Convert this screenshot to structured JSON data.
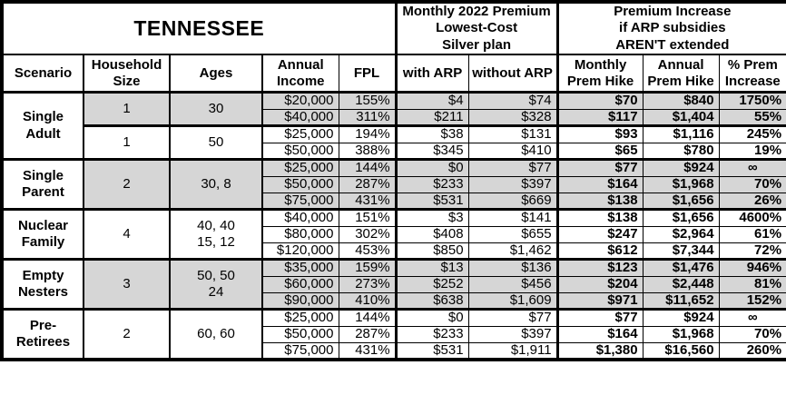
{
  "title": "TENNESSEE",
  "colors": {
    "row_shading": "#d6d6d6",
    "border": "#000000",
    "background": "#ffffff",
    "text": "#000000"
  },
  "sections": {
    "premium": "Monthly 2022 Premium\nLowest-Cost\nSilver plan",
    "increase": "Premium Increase\nif ARP subsidies\nAREN'T extended"
  },
  "columns": [
    "Scenario",
    "Household\nSize",
    "Ages",
    "Annual\nIncome",
    "FPL",
    "with ARP",
    "without ARP",
    "Monthly\nPrem Hike",
    "Annual\nPrem Hike",
    "% Prem\nIncrease"
  ],
  "groups": [
    {
      "scenario": "Single\nAdult",
      "subgroups": [
        {
          "size": "1",
          "ages": "30",
          "shaded": true,
          "rows": [
            {
              "income": "$20,000",
              "fpl": "155%",
              "with_arp": "$4",
              "without_arp": "$74",
              "monthly_hike": "$70",
              "annual_hike": "$840",
              "pct_increase": "1750%"
            },
            {
              "income": "$40,000",
              "fpl": "311%",
              "with_arp": "$211",
              "without_arp": "$328",
              "monthly_hike": "$117",
              "annual_hike": "$1,404",
              "pct_increase": "55%"
            }
          ]
        },
        {
          "size": "1",
          "ages": "50",
          "shaded": false,
          "rows": [
            {
              "income": "$25,000",
              "fpl": "194%",
              "with_arp": "$38",
              "without_arp": "$131",
              "monthly_hike": "$93",
              "annual_hike": "$1,116",
              "pct_increase": "245%"
            },
            {
              "income": "$50,000",
              "fpl": "388%",
              "with_arp": "$345",
              "without_arp": "$410",
              "monthly_hike": "$65",
              "annual_hike": "$780",
              "pct_increase": "19%"
            }
          ]
        }
      ]
    },
    {
      "scenario": "Single\nParent",
      "subgroups": [
        {
          "size": "2",
          "ages": "30, 8",
          "shaded": true,
          "rows": [
            {
              "income": "$25,000",
              "fpl": "144%",
              "with_arp": "$0",
              "without_arp": "$77",
              "monthly_hike": "$77",
              "annual_hike": "$924",
              "pct_increase": "∞"
            },
            {
              "income": "$50,000",
              "fpl": "287%",
              "with_arp": "$233",
              "without_arp": "$397",
              "monthly_hike": "$164",
              "annual_hike": "$1,968",
              "pct_increase": "70%"
            },
            {
              "income": "$75,000",
              "fpl": "431%",
              "with_arp": "$531",
              "without_arp": "$669",
              "monthly_hike": "$138",
              "annual_hike": "$1,656",
              "pct_increase": "26%"
            }
          ]
        }
      ]
    },
    {
      "scenario": "Nuclear\nFamily",
      "subgroups": [
        {
          "size": "4",
          "ages": "40, 40\n15, 12",
          "shaded": false,
          "rows": [
            {
              "income": "$40,000",
              "fpl": "151%",
              "with_arp": "$3",
              "without_arp": "$141",
              "monthly_hike": "$138",
              "annual_hike": "$1,656",
              "pct_increase": "4600%"
            },
            {
              "income": "$80,000",
              "fpl": "302%",
              "with_arp": "$408",
              "without_arp": "$655",
              "monthly_hike": "$247",
              "annual_hike": "$2,964",
              "pct_increase": "61%"
            },
            {
              "income": "$120,000",
              "fpl": "453%",
              "with_arp": "$850",
              "without_arp": "$1,462",
              "monthly_hike": "$612",
              "annual_hike": "$7,344",
              "pct_increase": "72%"
            }
          ]
        }
      ]
    },
    {
      "scenario": "Empty\nNesters",
      "subgroups": [
        {
          "size": "3",
          "ages": "50, 50\n24",
          "shaded": true,
          "rows": [
            {
              "income": "$35,000",
              "fpl": "159%",
              "with_arp": "$13",
              "without_arp": "$136",
              "monthly_hike": "$123",
              "annual_hike": "$1,476",
              "pct_increase": "946%"
            },
            {
              "income": "$60,000",
              "fpl": "273%",
              "with_arp": "$252",
              "without_arp": "$456",
              "monthly_hike": "$204",
              "annual_hike": "$2,448",
              "pct_increase": "81%"
            },
            {
              "income": "$90,000",
              "fpl": "410%",
              "with_arp": "$638",
              "without_arp": "$1,609",
              "monthly_hike": "$971",
              "annual_hike": "$11,652",
              "pct_increase": "152%"
            }
          ]
        }
      ]
    },
    {
      "scenario": "Pre-\nRetirees",
      "subgroups": [
        {
          "size": "2",
          "ages": "60, 60",
          "shaded": false,
          "rows": [
            {
              "income": "$25,000",
              "fpl": "144%",
              "with_arp": "$0",
              "without_arp": "$77",
              "monthly_hike": "$77",
              "annual_hike": "$924",
              "pct_increase": "∞"
            },
            {
              "income": "$50,000",
              "fpl": "287%",
              "with_arp": "$233",
              "without_arp": "$397",
              "monthly_hike": "$164",
              "annual_hike": "$1,968",
              "pct_increase": "70%"
            },
            {
              "income": "$75,000",
              "fpl": "431%",
              "with_arp": "$531",
              "without_arp": "$1,911",
              "monthly_hike": "$1,380",
              "annual_hike": "$16,560",
              "pct_increase": "260%"
            }
          ]
        }
      ]
    }
  ]
}
